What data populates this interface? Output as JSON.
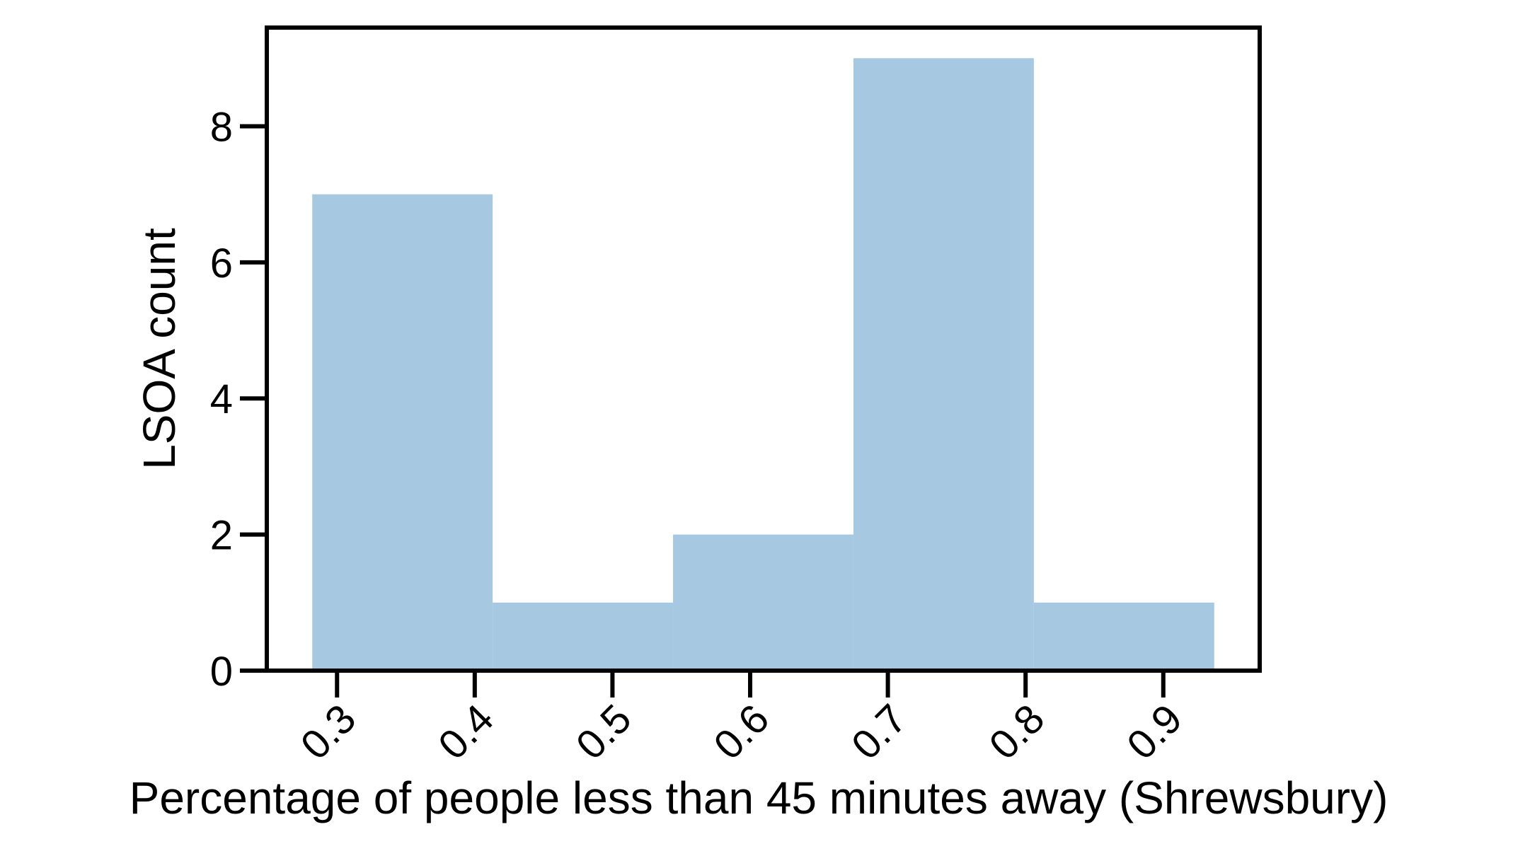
{
  "chart_data": {
    "type": "bar",
    "histogram": true,
    "bins": [
      {
        "x0": 0.282,
        "x1": 0.413,
        "count": 7
      },
      {
        "x0": 0.413,
        "x1": 0.544,
        "count": 1
      },
      {
        "x0": 0.544,
        "x1": 0.675,
        "count": 2
      },
      {
        "x0": 0.675,
        "x1": 0.806,
        "count": 9
      },
      {
        "x0": 0.806,
        "x1": 0.937,
        "count": 1
      }
    ],
    "xlabel": "Percentage of people less than 45 minutes away (Shrewsbury)",
    "ylabel": "LSOA count",
    "xlim": [
      0.249,
      0.97
    ],
    "ylim": [
      0,
      9.45
    ],
    "xticks": [
      "0.3",
      "0.4",
      "0.5",
      "0.6",
      "0.7",
      "0.8",
      "0.9"
    ],
    "yticks": [
      "0",
      "2",
      "4",
      "6",
      "8"
    ],
    "xtick_rotation_deg": 45,
    "bar_color": "#a6c8e1",
    "grid": false,
    "legend": "none"
  }
}
